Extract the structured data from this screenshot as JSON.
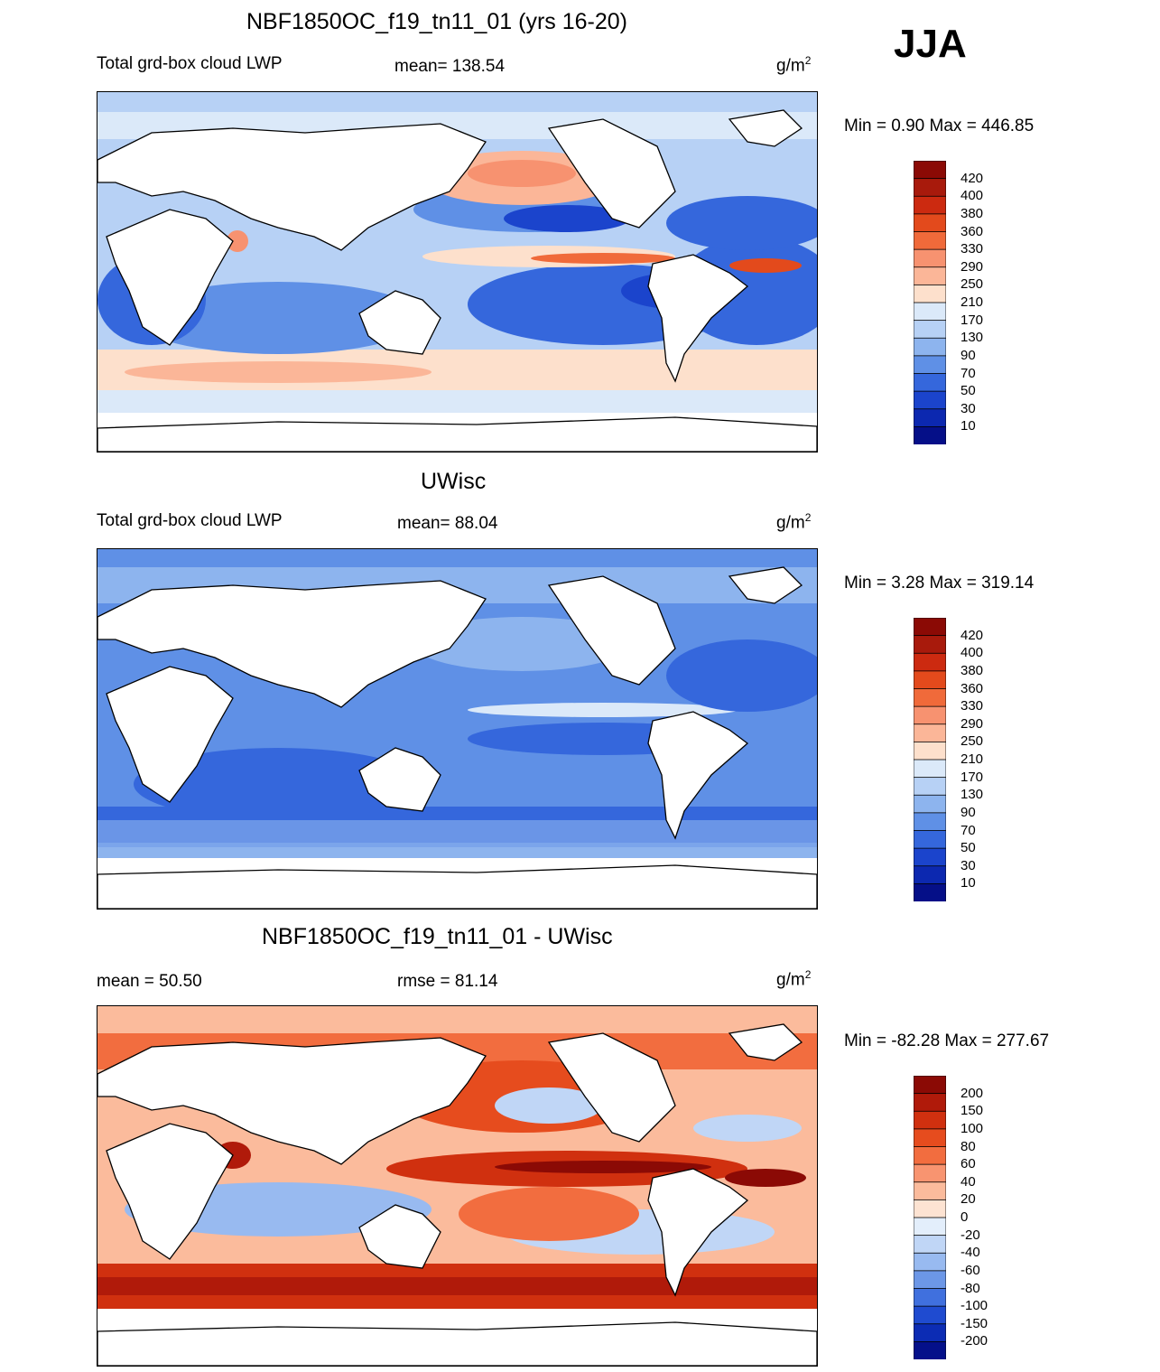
{
  "season": "JJA",
  "panels": [
    {
      "id": "model",
      "title": "NBF1850OC_f19_tn11_01 (yrs 16-20)",
      "left_label": "Total grd-box cloud LWP",
      "center_label": "mean= 138.54",
      "units_base": "g/m",
      "units_exp": "2",
      "minmax": "Min =   0.90 Max = 446.85",
      "colorbar": {
        "labels": [
          "420",
          "400",
          "380",
          "360",
          "330",
          "290",
          "250",
          "210",
          "170",
          "130",
          "90",
          "70",
          "50",
          "30",
          "10"
        ],
        "colors": [
          "#8b0a05",
          "#a81a0c",
          "#cc2a10",
          "#e34a1c",
          "#f06a3a",
          "#f79270",
          "#fbb698",
          "#fde0cc",
          "#dbe9f9",
          "#b7d1f5",
          "#8db4ee",
          "#5f90e6",
          "#3567dc",
          "#1b44cc",
          "#0c28b0",
          "#050f88"
        ]
      }
    },
    {
      "id": "obs",
      "title": "UWisc",
      "left_label": "Total grd-box cloud LWP",
      "center_label": "mean=  88.04",
      "units_base": "g/m",
      "units_exp": "2",
      "minmax": "Min =   3.28 Max = 319.14",
      "colorbar": {
        "labels": [
          "420",
          "400",
          "380",
          "360",
          "330",
          "290",
          "250",
          "210",
          "170",
          "130",
          "90",
          "70",
          "50",
          "30",
          "10"
        ],
        "colors": [
          "#8b0a05",
          "#a81a0c",
          "#cc2a10",
          "#e34a1c",
          "#f06a3a",
          "#f79270",
          "#fbb698",
          "#fde0cc",
          "#dbe9f9",
          "#b7d1f5",
          "#8db4ee",
          "#5f90e6",
          "#3567dc",
          "#1b44cc",
          "#0c28b0",
          "#050f88"
        ]
      }
    },
    {
      "id": "diff",
      "title": "NBF1850OC_f19_tn11_01 - UWisc",
      "left_label": "mean =  50.50",
      "center_label": "rmse =  81.14",
      "units_base": "g/m",
      "units_exp": "2",
      "minmax": "Min = -82.28 Max = 277.67",
      "colorbar": {
        "labels": [
          "200",
          "150",
          "100",
          "80",
          "60",
          "40",
          "20",
          "0",
          "-20",
          "-40",
          "-60",
          "-80",
          "-100",
          "-150",
          "-200"
        ],
        "colors": [
          "#8b0a05",
          "#b01a0a",
          "#d0300f",
          "#e64c1e",
          "#f26d3f",
          "#f89470",
          "#fbbb9c",
          "#fde3d2",
          "#e3eefb",
          "#c0d6f6",
          "#98baf0",
          "#6c97e7",
          "#4070de",
          "#1f4bd0",
          "#0c2cb4",
          "#04108a"
        ]
      }
    }
  ]
}
